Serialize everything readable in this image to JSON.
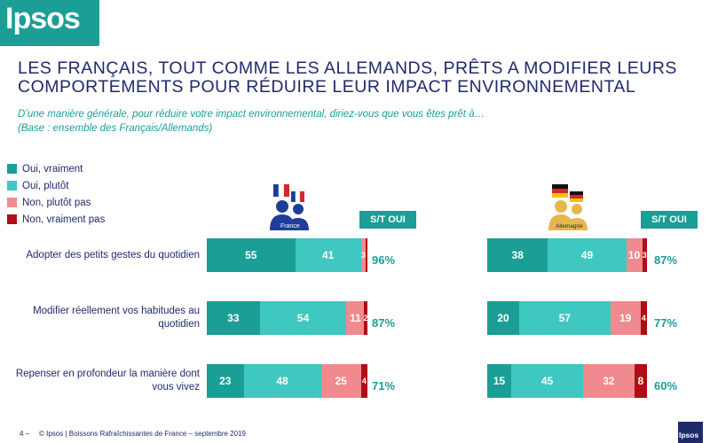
{
  "logo": {
    "text": "Ipsos"
  },
  "title": {
    "line1": "LES FRANÇAIS, TOUT COMME LES ALLEMANDS, PRÊTS A MODIFIER LEURS",
    "line2": "COMPORTEMENTS POUR RÉDUIRE LEUR IMPACT ENVIRONNEMENTAL"
  },
  "question": "D’une manière générale, pour réduire votre impact environnemental, diriez-vous que vous êtes prêt à…",
  "base": "(Base : ensemble des Français/Allemands)",
  "colors": {
    "oui_vraiment": "#1a9e96",
    "oui_plutot": "#3fc7c2",
    "non_plutot_pas": "#f08a8f",
    "non_vraiment_pas": "#b00d14",
    "text": "#1f2a6b"
  },
  "legend": [
    {
      "label": "Oui, vraiment",
      "color": "#1a9e96"
    },
    {
      "label": "Oui, plutôt",
      "color": "#3fc7c2"
    },
    {
      "label": "Non, plutôt pas",
      "color": "#f08a8f"
    },
    {
      "label": "Non, vraiment pas",
      "color": "#b00d14"
    }
  ],
  "st_label": "S/T OUI",
  "france": {
    "icon_label": "France",
    "icon": "people-with-france-flag-icon"
  },
  "germany": {
    "icon_label": "Allemagne",
    "icon": "people-with-germany-flag-icon"
  },
  "chart_data": {
    "type": "bar",
    "stacked": true,
    "orientation": "horizontal",
    "categories": [
      "Adopter des petits gestes du quotidien",
      "Modifier réellement vos habitudes au quotidien",
      "Repenser en profondeur la manière dont vous vivez"
    ],
    "series_names": [
      "Oui, vraiment",
      "Oui, plutôt",
      "Non, plutôt pas",
      "Non, vraiment pas"
    ],
    "panels": [
      {
        "name": "France",
        "rows": [
          {
            "values": [
              55,
              41,
              3,
              1
            ],
            "labels": [
              "55",
              "41",
              "3",
              ""
            ],
            "total": "96%"
          },
          {
            "values": [
              33,
              54,
              11,
              2
            ],
            "labels": [
              "33",
              "54",
              "11",
              "2"
            ],
            "total": "87%"
          },
          {
            "values": [
              23,
              48,
              25,
              4
            ],
            "labels": [
              "23",
              "48",
              "25",
              "4"
            ],
            "total": "71%"
          }
        ]
      },
      {
        "name": "Allemagne",
        "rows": [
          {
            "values": [
              38,
              49,
              10,
              3
            ],
            "labels": [
              "38",
              "49",
              "10",
              "3"
            ],
            "total": "87%"
          },
          {
            "values": [
              20,
              57,
              19,
              4
            ],
            "labels": [
              "20",
              "57",
              "19",
              "4"
            ],
            "total": "77%"
          },
          {
            "values": [
              15,
              45,
              32,
              8
            ],
            "labels": [
              "15",
              "45",
              "32",
              "8"
            ],
            "total": "60%"
          }
        ]
      }
    ]
  },
  "footer": {
    "page": "4 –",
    "text": "© Ipsos | Boissons Rafraîchissantes de France – septembre 2019",
    "logo_text": "Ipsos"
  }
}
